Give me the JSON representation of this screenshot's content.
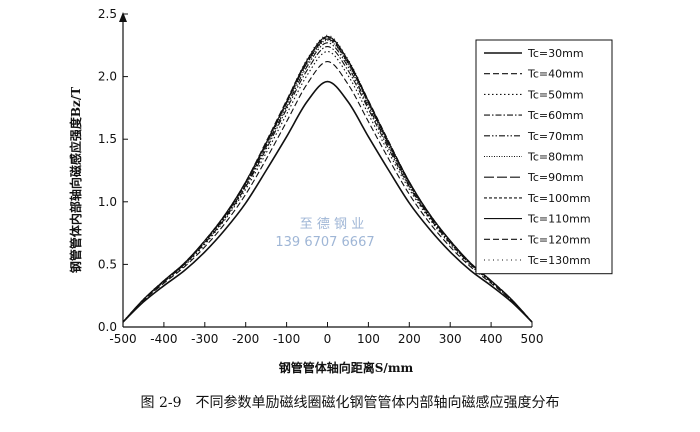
{
  "chart_data": {
    "type": "line",
    "title": "",
    "xlabel": "钢管管体轴向距离S/mm",
    "ylabel": "钢管管体内部轴向磁感应强度Bz/T",
    "xlim": [
      -500,
      500
    ],
    "ylim": [
      0,
      2.5
    ],
    "x_ticks": [
      "-500",
      "-400",
      "-300",
      "-200",
      "-100",
      "0",
      "100",
      "200",
      "300",
      "400",
      "500"
    ],
    "y_ticks": [
      "0.0",
      "0.5",
      "1.0",
      "1.5",
      "2.0",
      "2.5"
    ],
    "grid": false,
    "legend_position": "top-right",
    "x": [
      -500,
      -450,
      -400,
      -350,
      -300,
      -250,
      -200,
      -150,
      -100,
      -50,
      0,
      50,
      100,
      150,
      200,
      250,
      300,
      350,
      400,
      450,
      500
    ],
    "series": [
      {
        "name": "Tc=30mm",
        "dash": "solid",
        "values": [
          0.04,
          0.2,
          0.33,
          0.45,
          0.6,
          0.78,
          0.99,
          1.25,
          1.52,
          1.8,
          1.96,
          1.8,
          1.52,
          1.25,
          0.99,
          0.78,
          0.6,
          0.45,
          0.33,
          0.2,
          0.04
        ]
      },
      {
        "name": "Tc=40mm",
        "dash": "dashed",
        "values": [
          0.04,
          0.21,
          0.35,
          0.48,
          0.64,
          0.83,
          1.06,
          1.34,
          1.64,
          1.94,
          2.12,
          1.94,
          1.64,
          1.34,
          1.06,
          0.83,
          0.64,
          0.48,
          0.35,
          0.21,
          0.04
        ]
      },
      {
        "name": "Tc=50mm",
        "dash": "dotted",
        "values": [
          0.04,
          0.21,
          0.36,
          0.49,
          0.66,
          0.86,
          1.1,
          1.39,
          1.7,
          2.01,
          2.2,
          2.01,
          1.7,
          1.39,
          1.1,
          0.86,
          0.66,
          0.49,
          0.36,
          0.21,
          0.04
        ]
      },
      {
        "name": "Tc=60mm",
        "dash": "dashdot",
        "values": [
          0.04,
          0.22,
          0.36,
          0.5,
          0.67,
          0.87,
          1.12,
          1.42,
          1.74,
          2.05,
          2.24,
          2.05,
          1.74,
          1.42,
          1.12,
          0.87,
          0.67,
          0.5,
          0.36,
          0.22,
          0.04
        ]
      },
      {
        "name": "Tc=70mm",
        "dash": "dashdotdot",
        "values": [
          0.04,
          0.22,
          0.37,
          0.5,
          0.68,
          0.88,
          1.13,
          1.44,
          1.76,
          2.08,
          2.27,
          2.08,
          1.76,
          1.44,
          1.13,
          0.88,
          0.68,
          0.5,
          0.37,
          0.22,
          0.04
        ]
      },
      {
        "name": "Tc=80mm",
        "dash": "dense-dot",
        "values": [
          0.04,
          0.22,
          0.37,
          0.51,
          0.68,
          0.89,
          1.14,
          1.45,
          1.78,
          2.1,
          2.29,
          2.1,
          1.78,
          1.45,
          1.14,
          0.89,
          0.68,
          0.51,
          0.37,
          0.22,
          0.04
        ]
      },
      {
        "name": "Tc=90mm",
        "dash": "longdash",
        "values": [
          0.04,
          0.22,
          0.37,
          0.51,
          0.69,
          0.89,
          1.15,
          1.46,
          1.79,
          2.11,
          2.3,
          2.11,
          1.79,
          1.46,
          1.15,
          0.89,
          0.69,
          0.51,
          0.37,
          0.22,
          0.04
        ]
      },
      {
        "name": "Tc=100mm",
        "dash": "shortdash",
        "values": [
          0.04,
          0.22,
          0.37,
          0.51,
          0.69,
          0.9,
          1.15,
          1.47,
          1.8,
          2.12,
          2.31,
          2.12,
          1.8,
          1.47,
          1.15,
          0.9,
          0.69,
          0.51,
          0.37,
          0.22,
          0.04
        ]
      },
      {
        "name": "Tc=110mm",
        "dash": "solid",
        "values": [
          0.04,
          0.22,
          0.37,
          0.51,
          0.69,
          0.9,
          1.16,
          1.47,
          1.8,
          2.13,
          2.32,
          2.13,
          1.8,
          1.47,
          1.16,
          0.9,
          0.69,
          0.51,
          0.37,
          0.22,
          0.04
        ]
      },
      {
        "name": "Tc=120mm",
        "dash": "dashed",
        "values": [
          0.04,
          0.22,
          0.37,
          0.51,
          0.69,
          0.9,
          1.16,
          1.48,
          1.81,
          2.13,
          2.32,
          2.13,
          1.81,
          1.48,
          1.16,
          0.9,
          0.69,
          0.51,
          0.37,
          0.22,
          0.04
        ]
      },
      {
        "name": "Tc=130mm",
        "dash": "sparse-dot",
        "values": [
          0.04,
          0.22,
          0.37,
          0.51,
          0.69,
          0.9,
          1.16,
          1.48,
          1.81,
          2.14,
          2.33,
          2.14,
          1.81,
          1.48,
          1.16,
          0.9,
          0.69,
          0.51,
          0.37,
          0.22,
          0.04
        ]
      }
    ]
  },
  "watermark": {
    "line1": "至 德 钢 业",
    "line2": "139 6707 6667"
  },
  "caption": "图 2-9　不同参数单励磁线圈磁化钢管管体内部轴向磁感应强度分布"
}
